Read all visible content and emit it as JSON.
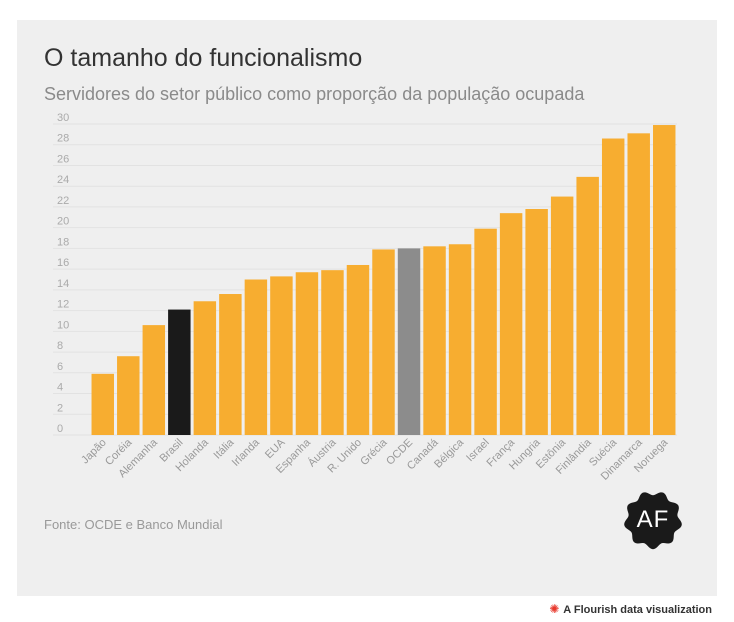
{
  "title": "O tamanho do funcionalismo",
  "subtitle": "Servidores do setor público como proporção da população ocupada",
  "source": "Fonte: OCDE e Banco Mundial",
  "logo_text": "AF",
  "footer": "A Flourish data visualization",
  "colors": {
    "default": "#f7ad30",
    "Brasil": "#1a1a1a",
    "OCDE": "#8c8c8c"
  },
  "chart_data": {
    "type": "bar",
    "title": "O tamanho do funcionalismo",
    "subtitle": "Servidores do setor público como proporção da população ocupada",
    "categories": [
      "Japão",
      "Coréia",
      "Alemanha",
      "Brasil",
      "Holanda",
      "Itália",
      "Irlanda",
      "EUA",
      "Espanha",
      "Áustria",
      "R. Unido",
      "Grécia",
      "OCDE",
      "Canadá",
      "Bélgica",
      "Israel",
      "França",
      "Hungria",
      "Estônia",
      "Finlândia",
      "Suécia",
      "Dinamarca",
      "Noruega"
    ],
    "values": [
      5.9,
      7.6,
      10.6,
      12.1,
      12.9,
      13.6,
      15.0,
      15.3,
      15.7,
      15.9,
      16.4,
      17.9,
      18.0,
      18.2,
      18.4,
      19.9,
      21.4,
      21.8,
      23.0,
      24.9,
      28.6,
      29.1,
      29.9
    ],
    "yticks": [
      0,
      2,
      4,
      6,
      8,
      10,
      12,
      14,
      16,
      18,
      20,
      22,
      24,
      26,
      28,
      30
    ],
    "ylim": [
      0,
      30
    ],
    "xlabel": "",
    "ylabel": "",
    "grid": true
  }
}
